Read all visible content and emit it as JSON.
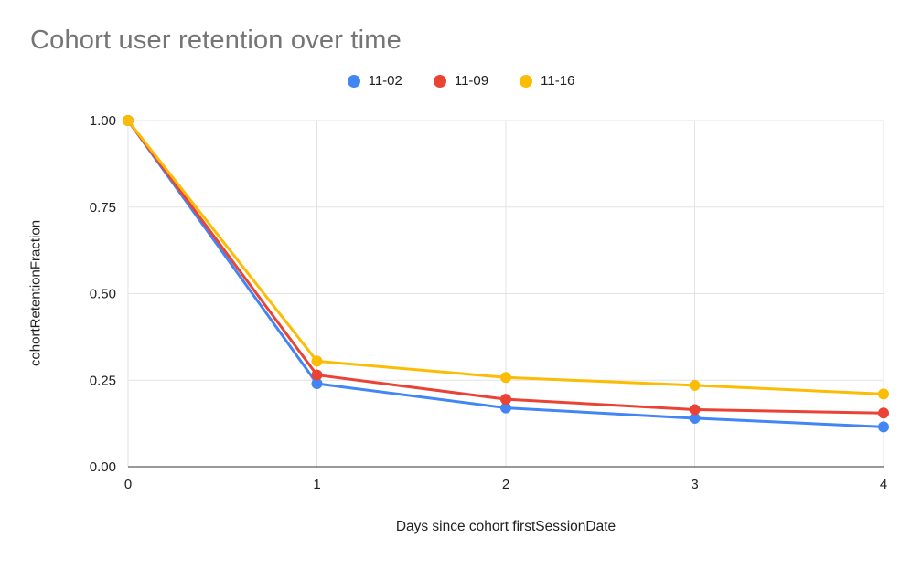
{
  "title": "Cohort user retention over time",
  "chart_data": {
    "type": "line",
    "x": [
      0,
      1,
      2,
      3,
      4
    ],
    "xtick_labels": [
      "0",
      "1",
      "2",
      "3",
      "4"
    ],
    "series": [
      {
        "name": "11-02",
        "color": "#4285F4",
        "values": [
          1.0,
          0.24,
          0.17,
          0.14,
          0.115
        ]
      },
      {
        "name": "11-09",
        "color": "#EA4335",
        "values": [
          1.0,
          0.265,
          0.195,
          0.165,
          0.155
        ]
      },
      {
        "name": "11-16",
        "color": "#FBBC04",
        "values": [
          1.0,
          0.305,
          0.258,
          0.235,
          0.21
        ]
      }
    ],
    "title": "Cohort user retention over time",
    "xlabel": "Days since cohort firstSessionDate",
    "ylabel": "cohortRetentionFraction",
    "ylim": [
      0,
      1
    ],
    "yticks": [
      0,
      0.25,
      0.5,
      0.75,
      1
    ],
    "ytick_labels": [
      "0.00",
      "0.25",
      "0.50",
      "0.75",
      "1.00"
    ],
    "grid": true,
    "legend_position": "top"
  },
  "colors": {
    "grid": "#e3e3e3",
    "axis_line": "#333333",
    "title": "#757575",
    "text": "#202124",
    "background": "#ffffff"
  }
}
